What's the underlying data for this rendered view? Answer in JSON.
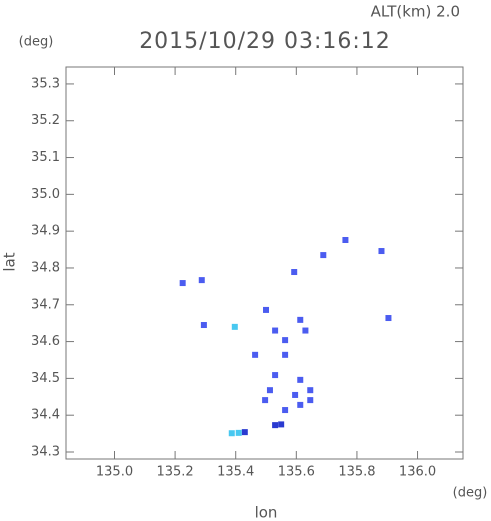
{
  "chart_data": {
    "type": "scatter",
    "title": "2015/10/29 03:16:12",
    "subtitle": "ALT(km) 2.0",
    "x_label": "lon",
    "y_label": "lat",
    "x_unit": "(deg)",
    "y_unit": "(deg)",
    "xlim": [
      134.84,
      136.15
    ],
    "ylim": [
      34.281,
      35.346
    ],
    "xticks": [
      {
        "value": 135,
        "label": "135.0"
      },
      135.2,
      135.4,
      135.6,
      135.8,
      {
        "value": 136,
        "label": "136.0"
      }
    ],
    "yticks": [
      34.3,
      34.4,
      34.5,
      34.6,
      34.7,
      34.8,
      34.9,
      {
        "value": 35,
        "label": "35.0"
      },
      35.1,
      35.2,
      35.3
    ],
    "series": [
      {
        "color": "#4b5cf0",
        "x": [
          135.225,
          135.288,
          135.295,
          135.593,
          135.689,
          135.762,
          135.881,
          135.904,
          135.5,
          135.53,
          135.563,
          135.613,
          135.63,
          135.464,
          135.563,
          135.53,
          135.613,
          135.646,
          135.513,
          135.613,
          135.646,
          135.563,
          135.497,
          135.596
        ],
        "y": [
          34.759,
          34.767,
          34.645,
          34.789,
          34.835,
          34.876,
          34.846,
          34.664,
          34.686,
          34.63,
          34.604,
          34.659,
          34.63,
          34.564,
          34.564,
          34.509,
          34.496,
          34.468,
          34.468,
          34.428,
          34.441,
          34.414,
          34.441,
          34.455
        ]
      },
      {
        "color": "#2a3ad0",
        "x": [
          135.53,
          135.43,
          135.55
        ],
        "y": [
          34.373,
          34.354,
          34.375
        ]
      },
      {
        "color": "#48c8f0",
        "x": [
          135.397,
          135.387,
          135.41
        ],
        "y": [
          34.64,
          34.351,
          34.352
        ]
      }
    ]
  }
}
